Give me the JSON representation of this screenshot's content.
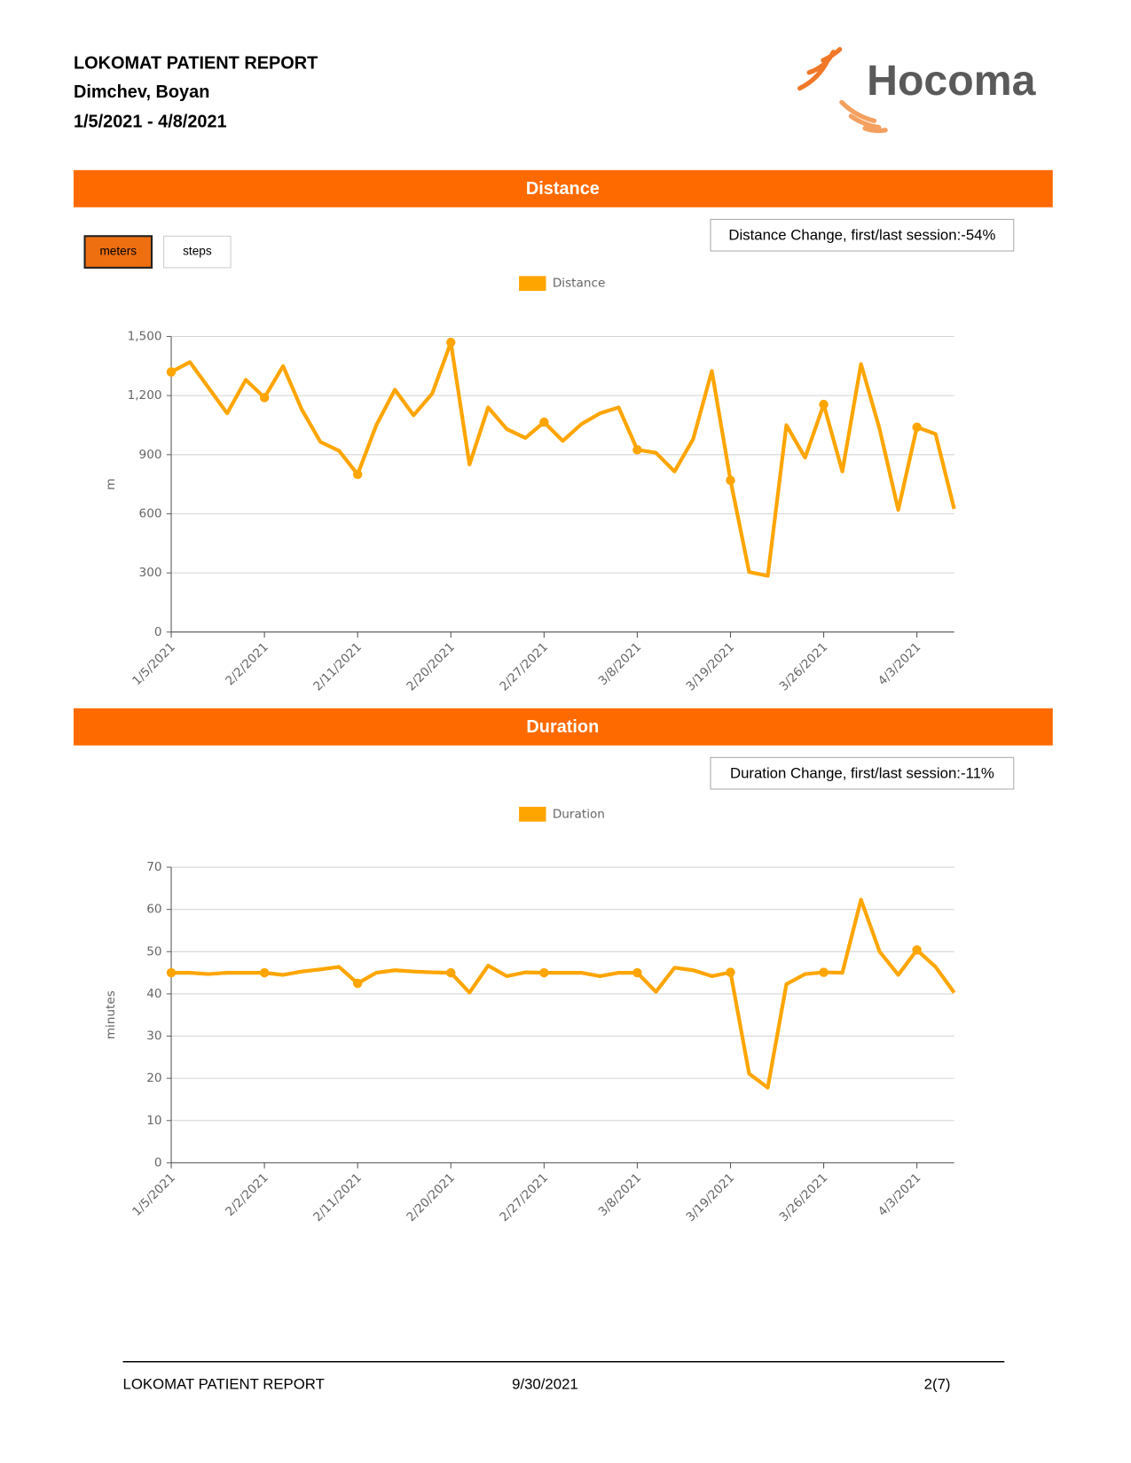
{
  "header": {
    "title": "LOKOMAT PATIENT REPORT",
    "patient": "Dimchev, Boyan",
    "date_range": "1/5/2021 - 4/8/2021",
    "logo": "Hocoma"
  },
  "controls": {
    "buttons": [
      "meters",
      "steps"
    ]
  },
  "chart_data": [
    {
      "type": "line",
      "title": "Distance",
      "annotation": "Distance Change, first/last session:-54%",
      "y_label": "m",
      "categories": [
        "1/5/2021",
        null,
        null,
        null,
        null,
        "2/2/2021",
        null,
        null,
        null,
        null,
        "2/11/2021",
        null,
        null,
        null,
        null,
        "2/20/2021",
        null,
        null,
        null,
        null,
        "2/27/2021",
        null,
        null,
        null,
        null,
        "3/8/2021",
        null,
        null,
        null,
        null,
        "3/19/2021",
        null,
        null,
        null,
        null,
        "3/26/2021",
        null,
        null,
        null,
        null,
        "4/3/2021",
        null,
        null
      ],
      "series": [
        {
          "name": "Distance",
          "color": "#ffa500",
          "values": [
            1320,
            1370,
            1240,
            1110,
            1280,
            1190,
            1350,
            1130,
            965,
            920,
            800,
            1050,
            1230,
            1100,
            1210,
            1470,
            850,
            1140,
            1030,
            985,
            1065,
            970,
            1055,
            1110,
            1140,
            925,
            910,
            815,
            980,
            1325,
            770,
            305,
            285,
            1050,
            885,
            1155,
            815,
            1360,
            1030,
            620,
            1040,
            1005,
            625
          ]
        }
      ],
      "ylim": [
        0,
        1500
      ],
      "yticks": [
        0,
        300,
        600,
        900,
        {
          "value": 1200,
          "label": "1,200"
        },
        {
          "value": 1500,
          "label": "1,500"
        }
      ],
      "grid": true
    },
    {
      "type": "line",
      "title": "Duration",
      "annotation": "Duration Change, first/last session:-11%",
      "y_label": "minutes",
      "categories": [
        "1/5/2021",
        null,
        null,
        null,
        null,
        "2/2/2021",
        null,
        null,
        null,
        null,
        "2/11/2021",
        null,
        null,
        null,
        null,
        "2/20/2021",
        null,
        null,
        null,
        null,
        "2/27/2021",
        null,
        null,
        null,
        null,
        "3/8/2021",
        null,
        null,
        null,
        null,
        "3/19/2021",
        null,
        null,
        null,
        null,
        "3/26/2021",
        null,
        null,
        null,
        null,
        "4/3/2021",
        null,
        null
      ],
      "series": [
        {
          "name": "Duration",
          "color": "#ffa500",
          "values": [
            45,
            45,
            44.7,
            45,
            45,
            45,
            44.5,
            45.3,
            45.8,
            46.4,
            42.5,
            45,
            45.6,
            45.3,
            45.1,
            45,
            40.3,
            46.7,
            44.2,
            45.1,
            45,
            45,
            45,
            44.2,
            45,
            45,
            40.5,
            46.2,
            45.6,
            44.2,
            45.1,
            21.1,
            17.8,
            42.3,
            44.7,
            45.1,
            45,
            62.3,
            50,
            44.5,
            50.4,
            46.4,
            40.3
          ]
        }
      ],
      "ylim": [
        0,
        70
      ],
      "yticks": [
        0,
        10,
        20,
        30,
        40,
        50,
        60,
        70
      ],
      "grid": true
    }
  ],
  "footer": {
    "title": "LOKOMAT PATIENT REPORT",
    "date": "9/30/2021",
    "page": "2(7)"
  }
}
